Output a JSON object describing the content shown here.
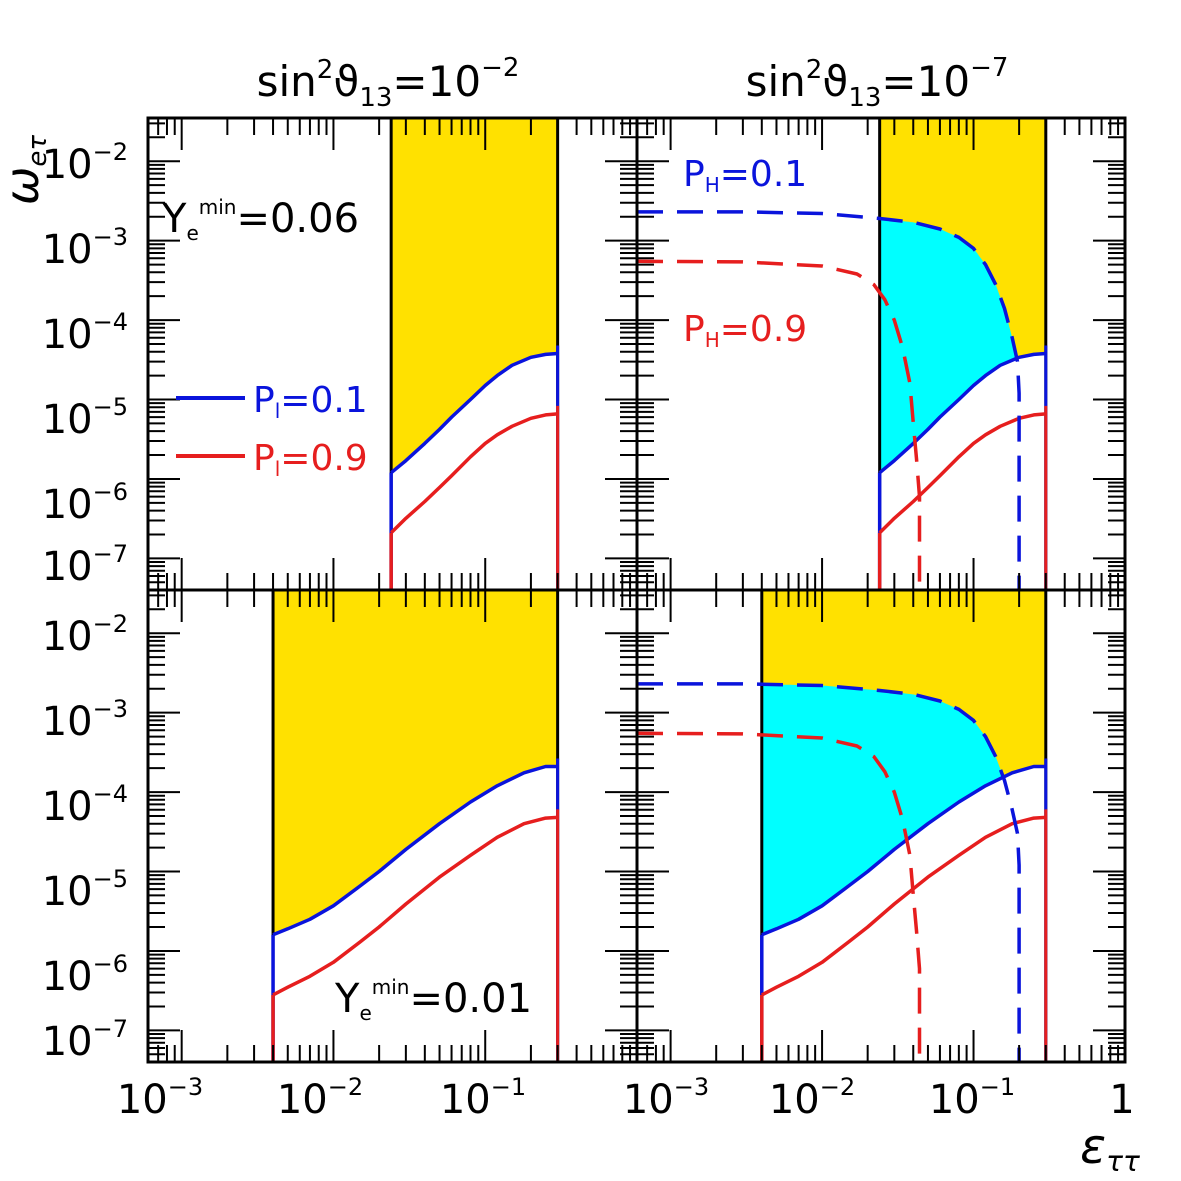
{
  "figure": {
    "col_titles": [
      {
        "base": "sin",
        "sup1": "2",
        "sym": "ϑ",
        "sub": "13",
        "eq": "=10",
        "exp": "−2"
      },
      {
        "base": "sin",
        "sup1": "2",
        "sym": "ϑ",
        "sub": "13",
        "eq": "=10",
        "exp": "−7"
      }
    ],
    "ylabel": {
      "main": "ω",
      "sub": "eτ"
    },
    "xlabel": {
      "main": "ε",
      "sub": "ττ"
    },
    "ytick_labels": [
      {
        "base": "10",
        "exp": "−2"
      },
      {
        "base": "10",
        "exp": "−3"
      },
      {
        "base": "10",
        "exp": "−4"
      },
      {
        "base": "10",
        "exp": "−5"
      },
      {
        "base": "10",
        "exp": "−6"
      },
      {
        "base": "10",
        "exp": "−7"
      }
    ],
    "xtick_labels": [
      {
        "base": "10",
        "exp": "−3"
      },
      {
        "base": "10",
        "exp": "−2"
      },
      {
        "base": "10",
        "exp": "−1"
      },
      {
        "base": "1",
        "exp": ""
      }
    ]
  },
  "annotations": {
    "ye_top": {
      "main": "Y",
      "sub": "e",
      "sup": "min",
      "rest": "=0.06"
    },
    "ye_bottom": {
      "main": "Y",
      "sub": "e",
      "sup": "min",
      "rest": "=0.01"
    },
    "ph_01": {
      "main": "P",
      "sub": "H",
      "rest": "=0.1"
    },
    "ph_09": {
      "main": "P",
      "sub": "H",
      "rest": "=0.9"
    }
  },
  "legend": {
    "placement": "left-middle of top-left panel",
    "entries": [
      {
        "main": "P",
        "sub": "l",
        "rest": "=0.1",
        "color": "#0a14dc"
      },
      {
        "main": "P",
        "sub": "l",
        "rest": "=0.9",
        "color": "#e61e1e"
      }
    ]
  },
  "colors": {
    "excluded_region": "#ffe100",
    "overlap_region": "#00ffff",
    "pl_01": "#0a14dc",
    "pl_09": "#e61e1e",
    "boundary": "#000000"
  },
  "chart_data": {
    "type": "line",
    "xscale": "log",
    "yscale": "log",
    "xlim": [
      0.0006,
      1.0
    ],
    "ylim": [
      4e-08,
      0.035
    ],
    "panels": [
      {
        "id": "top-left",
        "sin2_theta13": "10^-2",
        "Ye_min": 0.06,
        "excluded_eps_range": [
          0.024,
          0.3
        ],
        "series": [
          {
            "name": "P_l=0.1",
            "color": "#0a14dc",
            "style": "solid",
            "x": [
              0.024,
              0.03,
              0.04,
              0.05,
              0.06,
              0.08,
              0.1,
              0.12,
              0.15,
              0.2,
              0.25,
              0.3
            ],
            "y": [
              1.2e-06,
              1.7e-06,
              2.8e-06,
              4.2e-06,
              6e-06,
              1e-05,
              1.5e-05,
              2e-05,
              2.7e-05,
              3.4e-05,
              3.7e-05,
              3.8e-05
            ]
          },
          {
            "name": "P_l=0.9",
            "color": "#e61e1e",
            "style": "solid",
            "x": [
              0.024,
              0.03,
              0.04,
              0.05,
              0.06,
              0.08,
              0.1,
              0.12,
              0.15,
              0.2,
              0.25,
              0.3
            ],
            "y": [
              2.1e-07,
              3.2e-07,
              5.2e-07,
              7.8e-07,
              1.1e-06,
              1.9e-06,
              2.8e-06,
              3.6e-06,
              4.6e-06,
              5.8e-06,
              6.4e-06,
              6.6e-06
            ]
          }
        ]
      },
      {
        "id": "top-right",
        "sin2_theta13": "10^-7",
        "Ye_min": 0.06,
        "excluded_eps_range": [
          0.024,
          0.3
        ],
        "series": [
          {
            "name": "P_l=0.1",
            "color": "#0a14dc",
            "style": "solid",
            "x": [
              0.024,
              0.03,
              0.04,
              0.05,
              0.06,
              0.08,
              0.1,
              0.12,
              0.15,
              0.2,
              0.25,
              0.3
            ],
            "y": [
              1.2e-06,
              1.7e-06,
              2.8e-06,
              4.2e-06,
              6e-06,
              1e-05,
              1.5e-05,
              2e-05,
              2.7e-05,
              3.4e-05,
              3.7e-05,
              3.8e-05
            ]
          },
          {
            "name": "P_l=0.9",
            "color": "#e61e1e",
            "style": "solid",
            "x": [
              0.024,
              0.03,
              0.04,
              0.05,
              0.06,
              0.08,
              0.1,
              0.12,
              0.15,
              0.2,
              0.25,
              0.3
            ],
            "y": [
              2.1e-07,
              3.2e-07,
              5.2e-07,
              7.8e-07,
              1.1e-06,
              1.9e-06,
              2.8e-06,
              3.6e-06,
              4.6e-06,
              5.8e-06,
              6.4e-06,
              6.6e-06
            ]
          },
          {
            "name": "P_H=0.1",
            "color": "#0a14dc",
            "style": "dashed",
            "x": [
              0.0006,
              0.003,
              0.01,
              0.024,
              0.04,
              0.06,
              0.08,
              0.1,
              0.12,
              0.14,
              0.16,
              0.18,
              0.195,
              0.2,
              0.2,
              0.2
            ],
            "y": [
              0.0023,
              0.0023,
              0.0022,
              0.0019,
              0.0017,
              0.0014,
              0.0011,
              0.0008,
              0.0005,
              0.00028,
              0.00014,
              6e-05,
              3e-05,
              1.2e-05,
              1e-06,
              4e-08
            ]
          },
          {
            "name": "P_H=0.9",
            "color": "#e61e1e",
            "style": "dashed",
            "x": [
              0.0006,
              0.003,
              0.01,
              0.017,
              0.022,
              0.026,
              0.03,
              0.034,
              0.038,
              0.04,
              0.042,
              0.044,
              0.044,
              0.044
            ],
            "y": [
              0.00055,
              0.00054,
              0.00048,
              0.00038,
              0.00028,
              0.00018,
              0.0001,
              4.5e-05,
              1.6e-05,
              5e-06,
              1.8e-06,
              6e-07,
              1e-07,
              4e-08
            ]
          }
        ]
      },
      {
        "id": "bottom-left",
        "sin2_theta13": "10^-2",
        "Ye_min": 0.01,
        "excluded_eps_range": [
          0.004,
          0.3
        ],
        "series": [
          {
            "name": "P_l=0.1",
            "color": "#0a14dc",
            "style": "solid",
            "x": [
              0.004,
              0.005,
              0.007,
              0.01,
              0.015,
              0.02,
              0.03,
              0.05,
              0.08,
              0.12,
              0.18,
              0.25,
              0.3
            ],
            "y": [
              1.6e-06,
              1.9e-06,
              2.5e-06,
              3.7e-06,
              6.6e-06,
              1e-05,
              1.9e-05,
              4e-05,
              7.5e-05,
              0.00012,
              0.000175,
              0.00021,
              0.00021
            ]
          },
          {
            "name": "P_l=0.9",
            "color": "#e61e1e",
            "style": "solid",
            "x": [
              0.004,
              0.005,
              0.007,
              0.01,
              0.015,
              0.02,
              0.03,
              0.05,
              0.08,
              0.12,
              0.18,
              0.25,
              0.3
            ],
            "y": [
              2.8e-07,
              3.5e-07,
              4.8e-07,
              7.2e-07,
              1.3e-06,
              2e-06,
              3.9e-06,
              8.5e-06,
              1.6e-05,
              2.7e-05,
              4e-05,
              4.7e-05,
              4.8e-05
            ]
          }
        ]
      },
      {
        "id": "bottom-right",
        "sin2_theta13": "10^-7",
        "Ye_min": 0.01,
        "excluded_eps_range": [
          0.004,
          0.3
        ],
        "series": [
          {
            "name": "P_l=0.1",
            "color": "#0a14dc",
            "style": "solid",
            "x": [
              0.004,
              0.005,
              0.007,
              0.01,
              0.015,
              0.02,
              0.03,
              0.05,
              0.08,
              0.12,
              0.18,
              0.25,
              0.3
            ],
            "y": [
              1.6e-06,
              1.9e-06,
              2.5e-06,
              3.7e-06,
              6.6e-06,
              1e-05,
              1.9e-05,
              4e-05,
              7.5e-05,
              0.00012,
              0.000175,
              0.00021,
              0.00021
            ]
          },
          {
            "name": "P_l=0.9",
            "color": "#e61e1e",
            "style": "solid",
            "x": [
              0.004,
              0.005,
              0.007,
              0.01,
              0.015,
              0.02,
              0.03,
              0.05,
              0.08,
              0.12,
              0.18,
              0.25,
              0.3
            ],
            "y": [
              2.8e-07,
              3.5e-07,
              4.8e-07,
              7.2e-07,
              1.3e-06,
              2e-06,
              3.9e-06,
              8.5e-06,
              1.6e-05,
              2.7e-05,
              4e-05,
              4.7e-05,
              4.8e-05
            ]
          },
          {
            "name": "P_H=0.1",
            "color": "#0a14dc",
            "style": "dashed",
            "x": [
              0.0006,
              0.003,
              0.01,
              0.024,
              0.04,
              0.06,
              0.08,
              0.1,
              0.12,
              0.14,
              0.16,
              0.18,
              0.195,
              0.2,
              0.2,
              0.2
            ],
            "y": [
              0.0023,
              0.0023,
              0.0022,
              0.0019,
              0.0017,
              0.0014,
              0.0011,
              0.0008,
              0.0005,
              0.00028,
              0.00014,
              6e-05,
              3e-05,
              1.2e-05,
              1e-06,
              4e-08
            ]
          },
          {
            "name": "P_H=0.9",
            "color": "#e61e1e",
            "style": "dashed",
            "x": [
              0.0006,
              0.003,
              0.01,
              0.017,
              0.022,
              0.026,
              0.03,
              0.034,
              0.038,
              0.04,
              0.042,
              0.044,
              0.044,
              0.044
            ],
            "y": [
              0.00055,
              0.00054,
              0.00048,
              0.00038,
              0.00028,
              0.00018,
              0.0001,
              4.5e-05,
              1.6e-05,
              5e-06,
              1.8e-06,
              6e-07,
              1e-07,
              4e-08
            ]
          }
        ]
      }
    ]
  }
}
